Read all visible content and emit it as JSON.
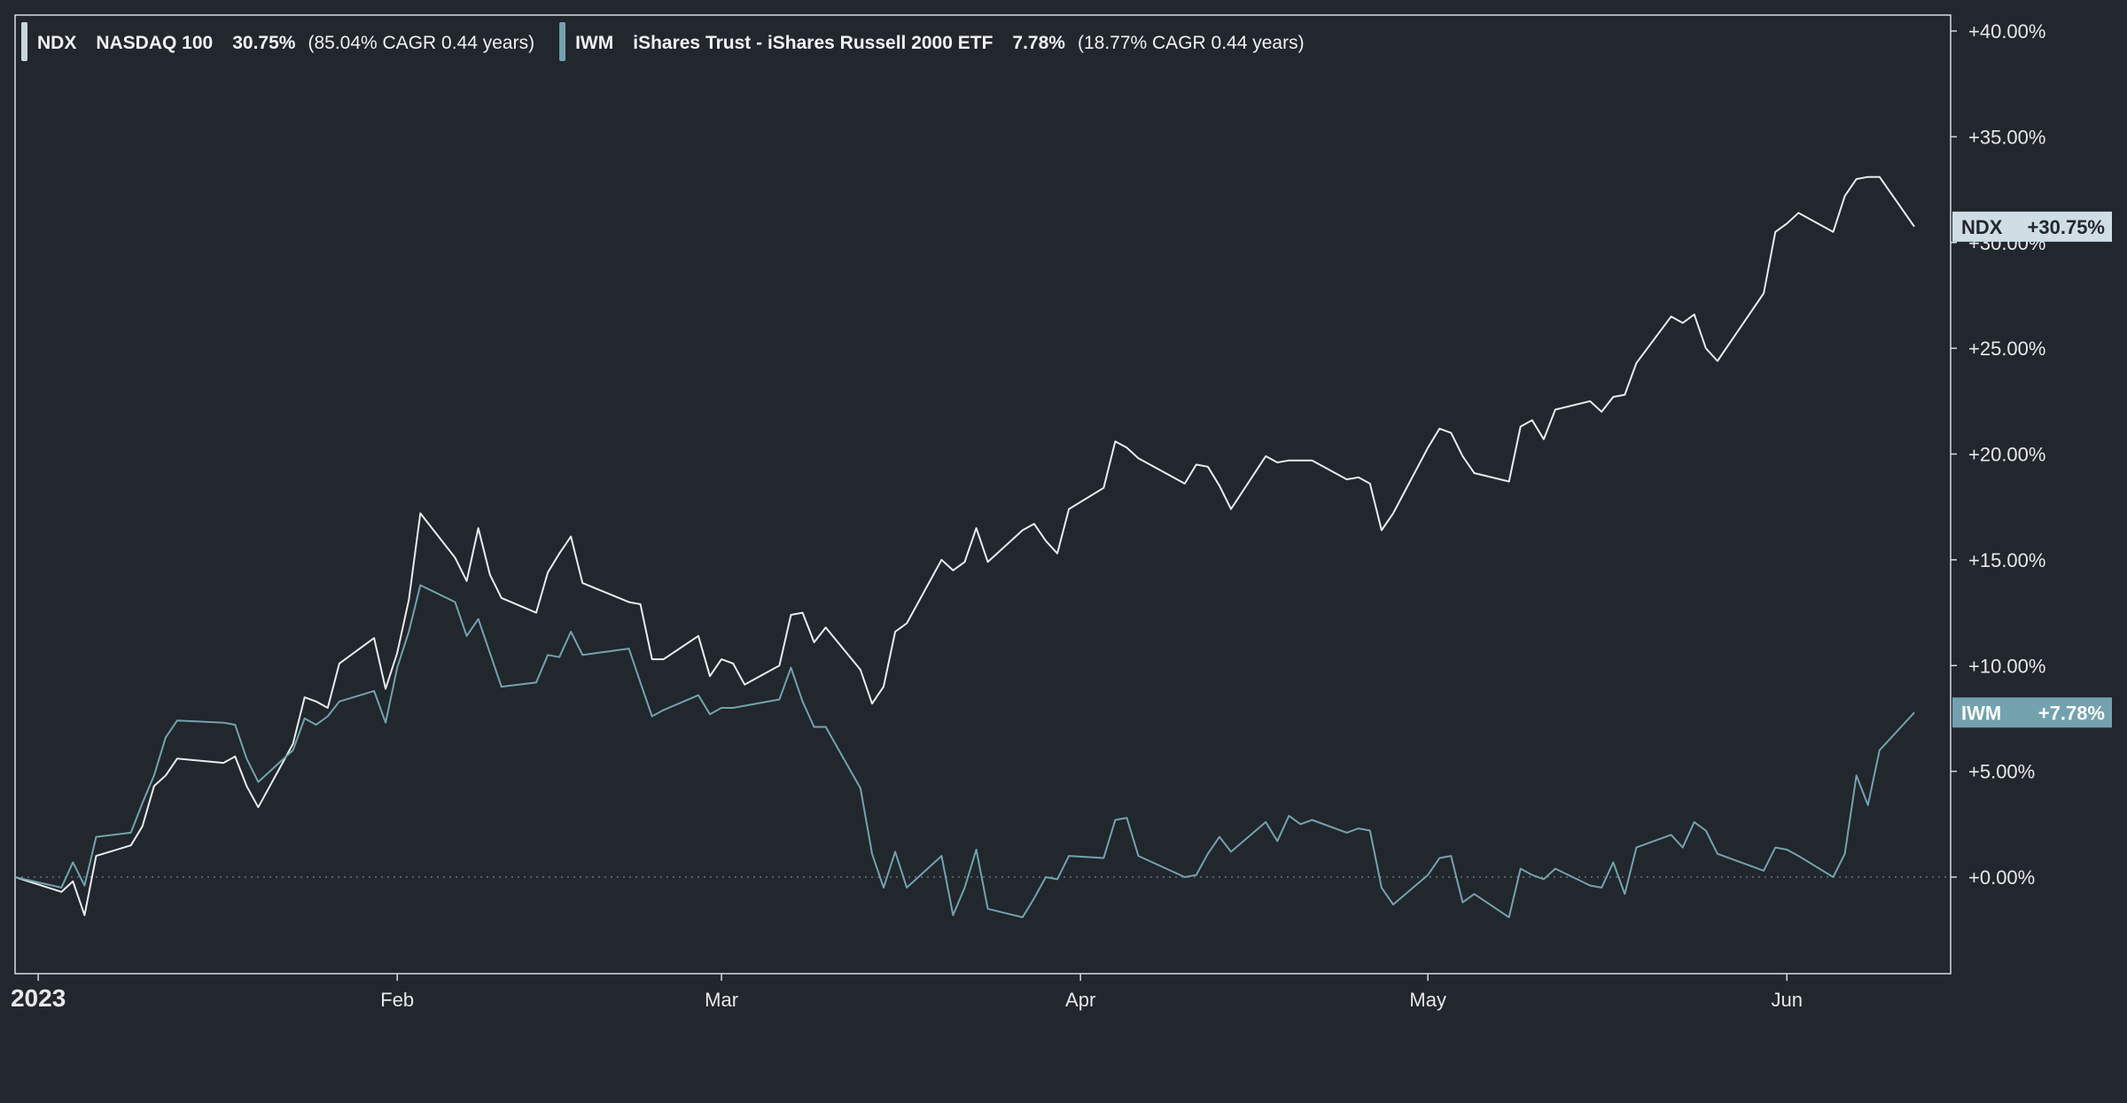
{
  "legend": [
    {
      "ticker": "NDX",
      "name": "NASDAQ 100",
      "return": "30.75%",
      "cagr": "(85.04% CAGR 0.44 years)",
      "color": "#c7d6de"
    },
    {
      "ticker": "IWM",
      "name": "iShares Trust - iShares Russell 2000 ETF",
      "return": "7.78%",
      "cagr": "(18.77% CAGR 0.44 years)",
      "color": "#73a2ae"
    }
  ],
  "price_tags": [
    {
      "label": "NDX",
      "value": "+30.75%",
      "bg": "#cfdde5",
      "fg": "#22262d"
    },
    {
      "label": "IWM",
      "value": "+7.78%",
      "bg": "#73a2ae",
      "fg": "#ffffff"
    }
  ],
  "colors": {
    "background": "#22262d",
    "ndx_line": "#e8ecef",
    "iwm_line": "#73a2ae",
    "text": "#e6e8ea"
  },
  "chart_data": {
    "type": "line",
    "xlim": [
      "2022-12-30",
      "2023-06-09"
    ],
    "ylim": [
      -4.5,
      40.8
    ],
    "y_ticks": [
      0,
      5,
      10,
      15,
      20,
      25,
      30,
      35,
      40
    ],
    "y_tick_labels": [
      "+0.00%",
      "+5.00%",
      "+10.00%",
      "+15.00%",
      "+20.00%",
      "+25.00%",
      "+30.00%",
      "+35.00%",
      "+40.00%"
    ],
    "x_ticks": [
      "2023-01-01",
      "2023-02-01",
      "2023-03-01",
      "2023-04-01",
      "2023-05-01",
      "2023-06-01"
    ],
    "x_tick_labels": [
      "2023",
      "Feb",
      "Mar",
      "Apr",
      "May",
      "Jun"
    ],
    "baseline": 0,
    "grid": false,
    "legend_position": "top-left",
    "series": [
      {
        "name": "NDX",
        "color": "#e8ecef",
        "values": [
          [
            "2022-12-30",
            0.0
          ],
          [
            "2023-01-03",
            -0.7
          ],
          [
            "2023-01-04",
            -0.2
          ],
          [
            "2023-01-05",
            -1.8
          ],
          [
            "2023-01-06",
            1.0
          ],
          [
            "2023-01-09",
            1.5
          ],
          [
            "2023-01-10",
            2.4
          ],
          [
            "2023-01-11",
            4.3
          ],
          [
            "2023-01-12",
            4.8
          ],
          [
            "2023-01-13",
            5.6
          ],
          [
            "2023-01-17",
            5.4
          ],
          [
            "2023-01-18",
            5.7
          ],
          [
            "2023-01-19",
            4.3
          ],
          [
            "2023-01-20",
            3.3
          ],
          [
            "2023-01-23",
            6.3
          ],
          [
            "2023-01-24",
            8.5
          ],
          [
            "2023-01-25",
            8.3
          ],
          [
            "2023-01-26",
            8.0
          ],
          [
            "2023-01-27",
            10.1
          ],
          [
            "2023-01-30",
            11.3
          ],
          [
            "2023-01-31",
            8.9
          ],
          [
            "2023-02-01",
            10.6
          ],
          [
            "2023-02-02",
            13.1
          ],
          [
            "2023-02-03",
            17.2
          ],
          [
            "2023-02-06",
            15.1
          ],
          [
            "2023-02-07",
            14.0
          ],
          [
            "2023-02-08",
            16.5
          ],
          [
            "2023-02-09",
            14.3
          ],
          [
            "2023-02-10",
            13.2
          ],
          [
            "2023-02-13",
            12.5
          ],
          [
            "2023-02-14",
            14.4
          ],
          [
            "2023-02-15",
            15.3
          ],
          [
            "2023-02-16",
            16.1
          ],
          [
            "2023-02-17",
            13.9
          ],
          [
            "2023-02-21",
            13.0
          ],
          [
            "2023-02-22",
            12.9
          ],
          [
            "2023-02-23",
            10.3
          ],
          [
            "2023-02-24",
            10.3
          ],
          [
            "2023-02-27",
            11.4
          ],
          [
            "2023-02-28",
            9.5
          ],
          [
            "2023-03-01",
            10.3
          ],
          [
            "2023-03-02",
            10.1
          ],
          [
            "2023-03-03",
            9.1
          ],
          [
            "2023-03-06",
            10.0
          ],
          [
            "2023-03-07",
            12.4
          ],
          [
            "2023-03-08",
            12.5
          ],
          [
            "2023-03-09",
            11.1
          ],
          [
            "2023-03-10",
            11.8
          ],
          [
            "2023-03-13",
            9.8
          ],
          [
            "2023-03-14",
            8.2
          ],
          [
            "2023-03-15",
            9.0
          ],
          [
            "2023-03-16",
            11.6
          ],
          [
            "2023-03-17",
            12.0
          ],
          [
            "2023-03-20",
            15.0
          ],
          [
            "2023-03-21",
            14.5
          ],
          [
            "2023-03-22",
            14.9
          ],
          [
            "2023-03-23",
            16.5
          ],
          [
            "2023-03-24",
            14.9
          ],
          [
            "2023-03-27",
            16.4
          ],
          [
            "2023-03-28",
            16.7
          ],
          [
            "2023-03-29",
            15.9
          ],
          [
            "2023-03-30",
            15.3
          ],
          [
            "2023-03-31",
            17.4
          ],
          [
            "2023-04-03",
            18.4
          ],
          [
            "2023-04-04",
            20.6
          ],
          [
            "2023-04-05",
            20.3
          ],
          [
            "2023-04-06",
            19.8
          ],
          [
            "2023-04-10",
            18.6
          ],
          [
            "2023-04-11",
            19.5
          ],
          [
            "2023-04-12",
            19.4
          ],
          [
            "2023-04-13",
            18.5
          ],
          [
            "2023-04-14",
            17.4
          ],
          [
            "2023-04-17",
            19.9
          ],
          [
            "2023-04-18",
            19.6
          ],
          [
            "2023-04-19",
            19.7
          ],
          [
            "2023-04-20",
            19.7
          ],
          [
            "2023-04-21",
            19.7
          ],
          [
            "2023-04-24",
            18.8
          ],
          [
            "2023-04-25",
            18.9
          ],
          [
            "2023-04-26",
            18.6
          ],
          [
            "2023-04-27",
            16.4
          ],
          [
            "2023-04-28",
            17.2
          ],
          [
            "2023-05-01",
            20.3
          ],
          [
            "2023-05-02",
            21.2
          ],
          [
            "2023-05-03",
            21.0
          ],
          [
            "2023-05-04",
            19.9
          ],
          [
            "2023-05-05",
            19.1
          ],
          [
            "2023-05-08",
            18.7
          ],
          [
            "2023-05-09",
            21.3
          ],
          [
            "2023-05-10",
            21.6
          ],
          [
            "2023-05-11",
            20.7
          ],
          [
            "2023-05-12",
            22.1
          ],
          [
            "2023-05-15",
            22.5
          ],
          [
            "2023-05-16",
            22.0
          ],
          [
            "2023-05-17",
            22.7
          ],
          [
            "2023-05-18",
            22.8
          ],
          [
            "2023-05-19",
            24.3
          ],
          [
            "2023-05-22",
            26.5
          ],
          [
            "2023-05-23",
            26.2
          ],
          [
            "2023-05-24",
            26.6
          ],
          [
            "2023-05-25",
            25.0
          ],
          [
            "2023-05-26",
            24.4
          ],
          [
            "2023-05-30",
            27.6
          ],
          [
            "2023-05-31",
            30.5
          ],
          [
            "2023-06-01",
            30.9
          ],
          [
            "2023-06-02",
            31.4
          ],
          [
            "2023-06-05",
            30.5
          ],
          [
            "2023-06-06",
            32.2
          ],
          [
            "2023-06-07",
            33.0
          ],
          [
            "2023-06-08",
            33.1
          ],
          [
            "2023-06-09",
            33.1
          ],
          [
            "2023-06-12",
            30.75
          ]
        ]
      },
      {
        "name": "IWM",
        "color": "#73a2ae",
        "values": [
          [
            "2022-12-30",
            0.0
          ],
          [
            "2023-01-03",
            -0.5
          ],
          [
            "2023-01-04",
            0.7
          ],
          [
            "2023-01-05",
            -0.4
          ],
          [
            "2023-01-06",
            1.9
          ],
          [
            "2023-01-09",
            2.1
          ],
          [
            "2023-01-10",
            3.5
          ],
          [
            "2023-01-11",
            4.8
          ],
          [
            "2023-01-12",
            6.6
          ],
          [
            "2023-01-13",
            7.4
          ],
          [
            "2023-01-17",
            7.3
          ],
          [
            "2023-01-18",
            7.2
          ],
          [
            "2023-01-19",
            5.6
          ],
          [
            "2023-01-20",
            4.5
          ],
          [
            "2023-01-23",
            6.0
          ],
          [
            "2023-01-24",
            7.5
          ],
          [
            "2023-01-25",
            7.2
          ],
          [
            "2023-01-26",
            7.6
          ],
          [
            "2023-01-27",
            8.3
          ],
          [
            "2023-01-30",
            8.8
          ],
          [
            "2023-01-31",
            7.3
          ],
          [
            "2023-02-01",
            9.9
          ],
          [
            "2023-02-02",
            11.6
          ],
          [
            "2023-02-03",
            13.8
          ],
          [
            "2023-02-06",
            13.0
          ],
          [
            "2023-02-07",
            11.4
          ],
          [
            "2023-02-08",
            12.2
          ],
          [
            "2023-02-09",
            10.6
          ],
          [
            "2023-02-10",
            9.0
          ],
          [
            "2023-02-13",
            9.2
          ],
          [
            "2023-02-14",
            10.5
          ],
          [
            "2023-02-15",
            10.4
          ],
          [
            "2023-02-16",
            11.6
          ],
          [
            "2023-02-17",
            10.5
          ],
          [
            "2023-02-21",
            10.8
          ],
          [
            "2023-02-22",
            9.2
          ],
          [
            "2023-02-23",
            7.6
          ],
          [
            "2023-02-24",
            7.9
          ],
          [
            "2023-02-27",
            8.6
          ],
          [
            "2023-02-28",
            7.7
          ],
          [
            "2023-03-01",
            8.0
          ],
          [
            "2023-03-02",
            8.0
          ],
          [
            "2023-03-03",
            8.1
          ],
          [
            "2023-03-06",
            8.4
          ],
          [
            "2023-03-07",
            9.9
          ],
          [
            "2023-03-08",
            8.3
          ],
          [
            "2023-03-09",
            7.1
          ],
          [
            "2023-03-10",
            7.1
          ],
          [
            "2023-03-13",
            4.2
          ],
          [
            "2023-03-14",
            1.1
          ],
          [
            "2023-03-15",
            -0.5
          ],
          [
            "2023-03-16",
            1.2
          ],
          [
            "2023-03-17",
            -0.5
          ],
          [
            "2023-03-20",
            1.0
          ],
          [
            "2023-03-21",
            -1.8
          ],
          [
            "2023-03-22",
            -0.5
          ],
          [
            "2023-03-23",
            1.3
          ],
          [
            "2023-03-24",
            -1.5
          ],
          [
            "2023-03-27",
            -1.9
          ],
          [
            "2023-03-28",
            -1.0
          ],
          [
            "2023-03-29",
            0.0
          ],
          [
            "2023-03-30",
            -0.1
          ],
          [
            "2023-03-31",
            1.0
          ],
          [
            "2023-04-03",
            0.9
          ],
          [
            "2023-04-04",
            2.7
          ],
          [
            "2023-04-05",
            2.8
          ],
          [
            "2023-04-06",
            1.0
          ],
          [
            "2023-04-10",
            0.0
          ],
          [
            "2023-04-11",
            0.1
          ],
          [
            "2023-04-12",
            1.1
          ],
          [
            "2023-04-13",
            1.9
          ],
          [
            "2023-04-14",
            1.2
          ],
          [
            "2023-04-17",
            2.6
          ],
          [
            "2023-04-18",
            1.7
          ],
          [
            "2023-04-19",
            2.9
          ],
          [
            "2023-04-20",
            2.5
          ],
          [
            "2023-04-21",
            2.7
          ],
          [
            "2023-04-24",
            2.1
          ],
          [
            "2023-04-25",
            2.3
          ],
          [
            "2023-04-26",
            2.2
          ],
          [
            "2023-04-27",
            -0.5
          ],
          [
            "2023-04-28",
            -1.3
          ],
          [
            "2023-05-01",
            0.1
          ],
          [
            "2023-05-02",
            0.9
          ],
          [
            "2023-05-03",
            1.0
          ],
          [
            "2023-05-04",
            -1.2
          ],
          [
            "2023-05-05",
            -0.8
          ],
          [
            "2023-05-08",
            -1.9
          ],
          [
            "2023-05-09",
            0.4
          ],
          [
            "2023-05-10",
            0.1
          ],
          [
            "2023-05-11",
            -0.1
          ],
          [
            "2023-05-12",
            0.4
          ],
          [
            "2023-05-15",
            -0.4
          ],
          [
            "2023-05-16",
            -0.5
          ],
          [
            "2023-05-17",
            0.7
          ],
          [
            "2023-05-18",
            -0.8
          ],
          [
            "2023-05-19",
            1.4
          ],
          [
            "2023-05-22",
            2.0
          ],
          [
            "2023-05-23",
            1.4
          ],
          [
            "2023-05-24",
            2.6
          ],
          [
            "2023-05-25",
            2.2
          ],
          [
            "2023-05-26",
            1.1
          ],
          [
            "2023-05-30",
            0.3
          ],
          [
            "2023-05-31",
            1.4
          ],
          [
            "2023-06-01",
            1.3
          ],
          [
            "2023-06-02",
            1.0
          ],
          [
            "2023-06-05",
            0.0
          ],
          [
            "2023-06-06",
            1.1
          ],
          [
            "2023-06-07",
            4.8
          ],
          [
            "2023-06-08",
            3.4
          ],
          [
            "2023-06-09",
            6.0
          ],
          [
            "2023-06-12",
            7.78
          ]
        ]
      }
    ]
  }
}
